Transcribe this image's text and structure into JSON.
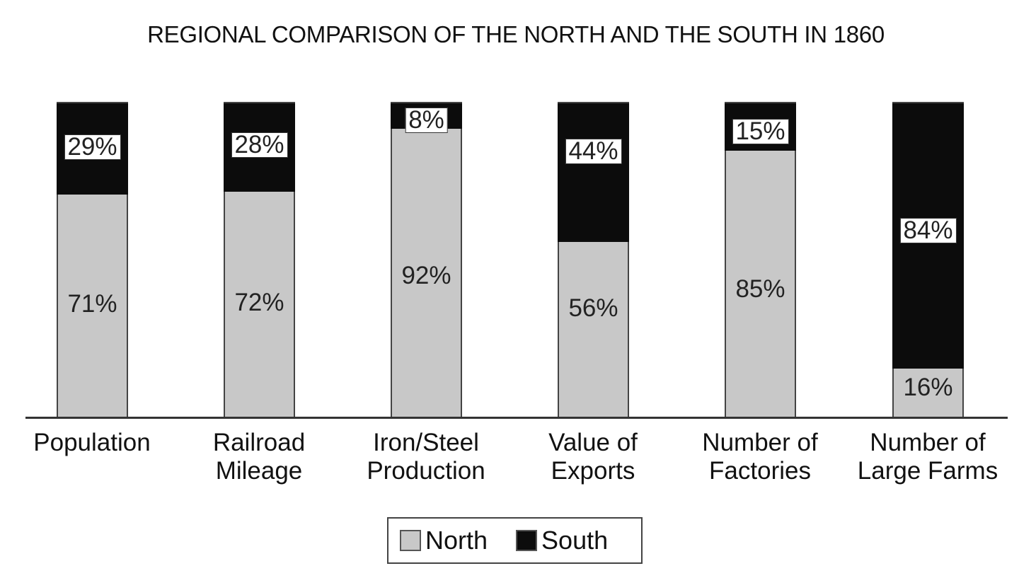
{
  "chart_data": {
    "type": "bar",
    "stacked": true,
    "percent": true,
    "title": "REGIONAL COMPARISON OF THE NORTH AND THE SOUTH IN 1860",
    "xlabel": "",
    "ylabel": "",
    "ylim": [
      0,
      100
    ],
    "grid": false,
    "legend_position": "bottom",
    "categories": [
      "Population",
      "Railroad Mileage",
      "Iron/Steel Production",
      "Value of Exports",
      "Number of Factories",
      "Number of Large Farms"
    ],
    "category_lines": [
      [
        "Population"
      ],
      [
        "Railroad",
        "Mileage"
      ],
      [
        "Iron/Steel",
        "Production"
      ],
      [
        "Value of",
        "Exports"
      ],
      [
        "Number of",
        "Factories"
      ],
      [
        "Number of",
        "Large Farms"
      ]
    ],
    "series": [
      {
        "name": "North",
        "color": "#c8c8c8",
        "values": [
          71,
          72,
          92,
          56,
          85,
          16
        ]
      },
      {
        "name": "South",
        "color": "#0c0c0c",
        "values": [
          29,
          28,
          8,
          44,
          15,
          84
        ]
      }
    ],
    "north_labels": [
      "71%",
      "72%",
      "92%",
      "56%",
      "85%",
      "16%"
    ],
    "south_labels": [
      "29%",
      "28%",
      "8%",
      "44%",
      "15%",
      "84%"
    ]
  },
  "legend": {
    "north": "North",
    "south": "South"
  }
}
